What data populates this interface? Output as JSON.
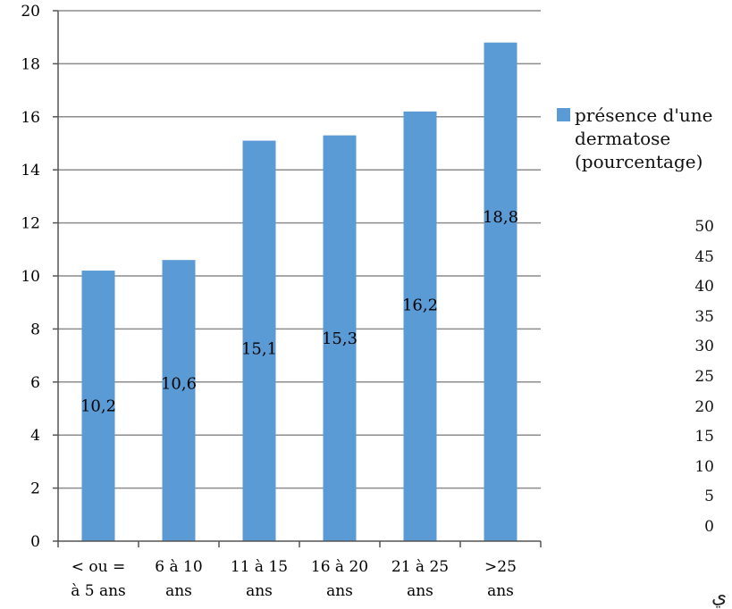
{
  "chart_data": {
    "type": "bar",
    "categories": [
      [
        "< ou =",
        "à 5 ans"
      ],
      [
        "6 à 10",
        "ans"
      ],
      [
        "11 à 15",
        "ans"
      ],
      [
        "16 à 20",
        "ans"
      ],
      [
        "21 à 25",
        "ans"
      ],
      [
        ">25",
        "ans"
      ]
    ],
    "series": [
      {
        "name": "présence d'une dermatose (pourcentage)",
        "values": [
          10.2,
          10.6,
          15.1,
          15.3,
          16.2,
          18.8
        ],
        "data_labels": [
          "10,2",
          "10,6",
          "15,1",
          "15,3",
          "16,2",
          "18,8"
        ],
        "color": "#5b9bd5"
      }
    ],
    "yticks": [
      "0",
      "2",
      "4",
      "6",
      "8",
      "10",
      "12",
      "14",
      "16",
      "18",
      "20"
    ],
    "ylim": [
      0,
      20
    ],
    "grid": true,
    "legend_position": "right"
  },
  "legend": {
    "text": "présence d'une dermatose (pourcentage)"
  },
  "secondary_axis": {
    "ticks": [
      "50",
      "45",
      "40",
      "35",
      "30",
      "25",
      "20",
      "15",
      "10",
      "5",
      "0"
    ]
  },
  "corner_glyph": "ي"
}
